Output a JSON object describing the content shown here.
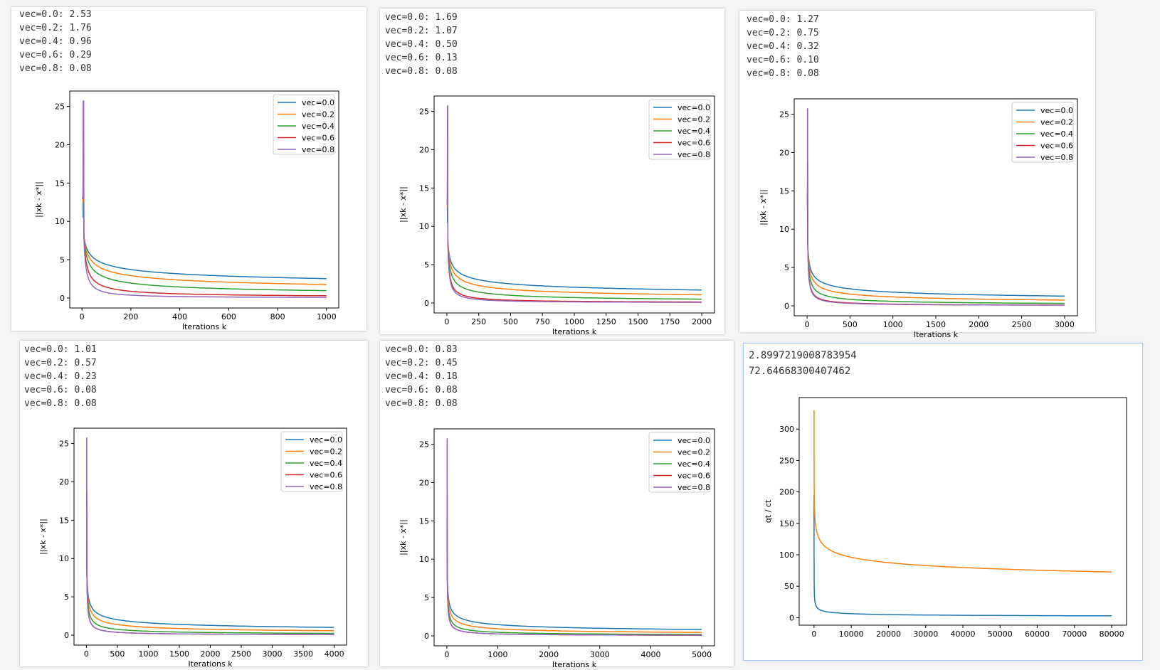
{
  "colors": {
    "vec_0_0": "#1f77b4",
    "vec_0_2": "#ff7f0e",
    "vec_0_4": "#2ca02c",
    "vec_0_6": "#d62728",
    "vec_0_8": "#9467bd"
  },
  "cells": [
    {
      "lines": [
        "vec=0.0: 2.53",
        "vec=0.2: 1.76",
        "vec=0.4: 0.96",
        "vec=0.6: 0.29",
        "vec=0.8: 0.08"
      ]
    },
    {
      "lines": [
        "vec=0.0: 1.69",
        "vec=0.2: 1.07",
        "vec=0.4: 0.50",
        "vec=0.6: 0.13",
        "vec=0.8: 0.08"
      ]
    },
    {
      "lines": [
        "vec=0.0: 1.27",
        "vec=0.2: 0.75",
        "vec=0.4: 0.32",
        "vec=0.6: 0.10",
        "vec=0.8: 0.08"
      ]
    },
    {
      "lines": [
        "vec=0.0: 1.01",
        "vec=0.2: 0.57",
        "vec=0.4: 0.23",
        "vec=0.6: 0.08",
        "vec=0.8: 0.08"
      ]
    },
    {
      "lines": [
        "vec=0.0: 0.83",
        "vec=0.2: 0.45",
        "vec=0.4: 0.18",
        "vec=0.6: 0.08",
        "vec=0.8: 0.08"
      ]
    },
    {
      "lines": [
        "2.8997219008783954",
        "72.64668300407462"
      ]
    }
  ],
  "chart_data": [
    {
      "type": "line",
      "xlabel": "Iterations k",
      "ylabel": "||xk - x*||",
      "xlim": [
        -50,
        1050
      ],
      "ylim": [
        -1.3,
        27
      ],
      "xticks": [
        0,
        200,
        400,
        600,
        800,
        1000
      ],
      "yticks": [
        0,
        5,
        10,
        15,
        20,
        25
      ],
      "legend": "top-right",
      "x_max": 1000,
      "series": [
        {
          "name": "vec=0.0",
          "start": 13,
          "peak": 10.5,
          "final": 2.53
        },
        {
          "name": "vec=0.2",
          "start": 13,
          "peak": 12.5,
          "final": 1.76
        },
        {
          "name": "vec=0.4",
          "start": 13,
          "peak": 15.5,
          "final": 0.96
        },
        {
          "name": "vec=0.6",
          "start": 13,
          "peak": 18.5,
          "final": 0.29
        },
        {
          "name": "vec=0.8",
          "start": 13,
          "peak": 25.7,
          "final": 0.08
        }
      ]
    },
    {
      "type": "line",
      "xlabel": "Iterations k",
      "ylabel": "||xk - x*||",
      "xlim": [
        -100,
        2100
      ],
      "ylim": [
        -1.3,
        27
      ],
      "xticks": [
        0,
        250,
        500,
        750,
        1000,
        1250,
        1500,
        1750,
        2000
      ],
      "yticks": [
        0,
        5,
        10,
        15,
        20,
        25
      ],
      "legend": "top-right",
      "x_max": 2000,
      "series": [
        {
          "name": "vec=0.0",
          "start": 13,
          "peak": 10.5,
          "final": 1.69
        },
        {
          "name": "vec=0.2",
          "start": 13,
          "peak": 12.5,
          "final": 1.07
        },
        {
          "name": "vec=0.4",
          "start": 13,
          "peak": 15.5,
          "final": 0.5
        },
        {
          "name": "vec=0.6",
          "start": 13,
          "peak": 18.5,
          "final": 0.13
        },
        {
          "name": "vec=0.8",
          "start": 13,
          "peak": 25.7,
          "final": 0.08
        }
      ]
    },
    {
      "type": "line",
      "xlabel": "Iterations k",
      "ylabel": "||xk - x*||",
      "xlim": [
        -150,
        3150
      ],
      "ylim": [
        -1.3,
        27
      ],
      "xticks": [
        0,
        500,
        1000,
        1500,
        2000,
        2500,
        3000
      ],
      "yticks": [
        0,
        5,
        10,
        15,
        20,
        25
      ],
      "legend": "top-right",
      "x_max": 3000,
      "series": [
        {
          "name": "vec=0.0",
          "start": 13,
          "peak": 10.5,
          "final": 1.27
        },
        {
          "name": "vec=0.2",
          "start": 13,
          "peak": 12.5,
          "final": 0.75
        },
        {
          "name": "vec=0.4",
          "start": 13,
          "peak": 15.5,
          "final": 0.32
        },
        {
          "name": "vec=0.6",
          "start": 13,
          "peak": 18.5,
          "final": 0.1
        },
        {
          "name": "vec=0.8",
          "start": 13,
          "peak": 25.7,
          "final": 0.08
        }
      ]
    },
    {
      "type": "line",
      "xlabel": "Iterations k",
      "ylabel": "||xk - x*||",
      "xlim": [
        -200,
        4200
      ],
      "ylim": [
        -1.3,
        27
      ],
      "xticks": [
        0,
        500,
        1000,
        1500,
        2000,
        2500,
        3000,
        3500,
        4000
      ],
      "yticks": [
        0,
        5,
        10,
        15,
        20,
        25
      ],
      "legend": "top-right",
      "x_max": 4000,
      "series": [
        {
          "name": "vec=0.0",
          "start": 13,
          "peak": 10.5,
          "final": 1.01
        },
        {
          "name": "vec=0.2",
          "start": 13,
          "peak": 12.5,
          "final": 0.57
        },
        {
          "name": "vec=0.4",
          "start": 13,
          "peak": 15.5,
          "final": 0.23
        },
        {
          "name": "vec=0.6",
          "start": 13,
          "peak": 18.5,
          "final": 0.08
        },
        {
          "name": "vec=0.8",
          "start": 13,
          "peak": 25.7,
          "final": 0.08
        }
      ]
    },
    {
      "type": "line",
      "xlabel": "Iterations k",
      "ylabel": "||xk - x*||",
      "xlim": [
        -250,
        5250
      ],
      "ylim": [
        -1.3,
        27
      ],
      "xticks": [
        0,
        1000,
        2000,
        3000,
        4000,
        5000
      ],
      "yticks": [
        0,
        5,
        10,
        15,
        20,
        25
      ],
      "legend": "top-right",
      "x_max": 5000,
      "series": [
        {
          "name": "vec=0.0",
          "start": 13,
          "peak": 10.5,
          "final": 0.83
        },
        {
          "name": "vec=0.2",
          "start": 13,
          "peak": 12.5,
          "final": 0.45
        },
        {
          "name": "vec=0.4",
          "start": 13,
          "peak": 15.5,
          "final": 0.18
        },
        {
          "name": "vec=0.6",
          "start": 13,
          "peak": 18.5,
          "final": 0.08
        },
        {
          "name": "vec=0.8",
          "start": 13,
          "peak": 25.7,
          "final": 0.08
        }
      ]
    },
    {
      "type": "line",
      "xlabel": "",
      "ylabel": "qt / ct",
      "xlim": [
        -4000,
        84000
      ],
      "ylim": [
        -12,
        350
      ],
      "xticks": [
        0,
        10000,
        20000,
        30000,
        40000,
        50000,
        60000,
        70000,
        80000
      ],
      "yticks": [
        0,
        50,
        100,
        150,
        200,
        250,
        300
      ],
      "legend": "none",
      "x_max": 80000,
      "series": [
        {
          "color_key": "vec_0_0",
          "start": 195,
          "final": 2.8997219008783954
        },
        {
          "color_key": "vec_0_2",
          "start": 330,
          "final": 72.64668300407462
        }
      ]
    }
  ]
}
